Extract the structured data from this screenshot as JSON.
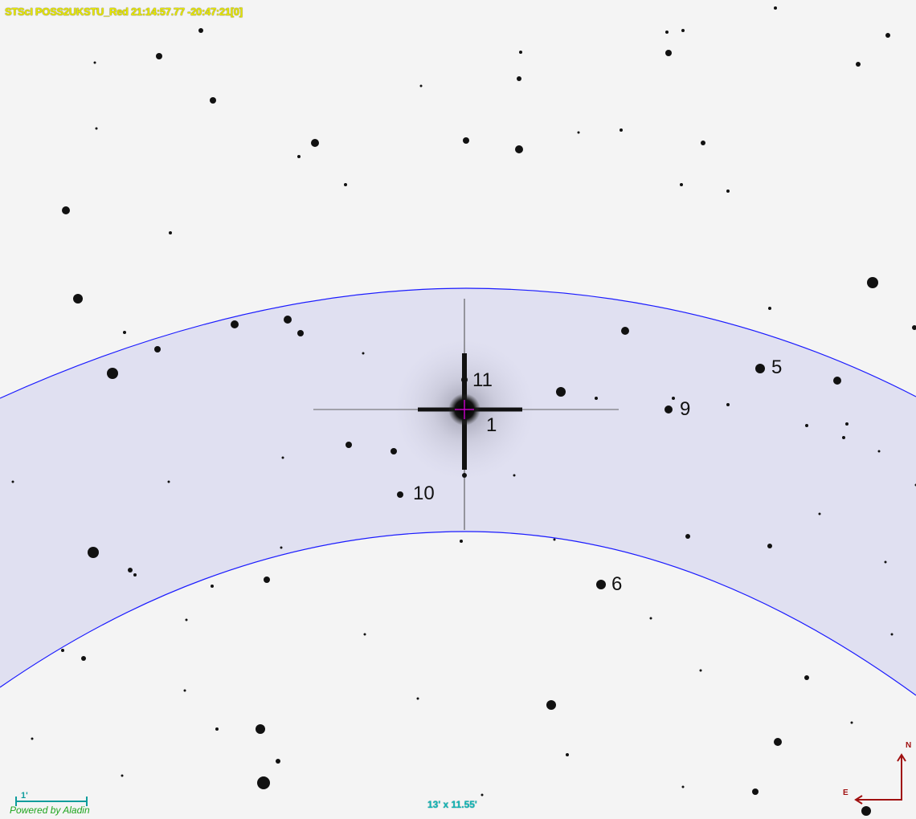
{
  "viewer": {
    "survey_label": "STScI POSS2UKSTU_Red 21:14:57.77 -20:47:21[0]",
    "fov_label": "13' x 11.55'",
    "scale_bar_label": "1'",
    "powered_by": "Powered by Aladin",
    "compass_north": "N",
    "compass_east": "E"
  },
  "colors": {
    "sky_background": "#f4f4f4",
    "annulus_fill": "#dcdcf0",
    "annulus_stroke": "#1a1aff",
    "star": "#111111",
    "target_marker": "#c000c0",
    "survey_label": "#e8e800",
    "fov_label": "#12b5b5",
    "powered_by": "#1ea51e",
    "compass": "#a01010"
  },
  "labels": [
    {
      "id": "11",
      "text": "11"
    },
    {
      "id": "1",
      "text": "1"
    },
    {
      "id": "9",
      "text": "9"
    },
    {
      "id": "5",
      "text": "5"
    },
    {
      "id": "10",
      "text": "10"
    },
    {
      "id": "6",
      "text": "6"
    }
  ]
}
